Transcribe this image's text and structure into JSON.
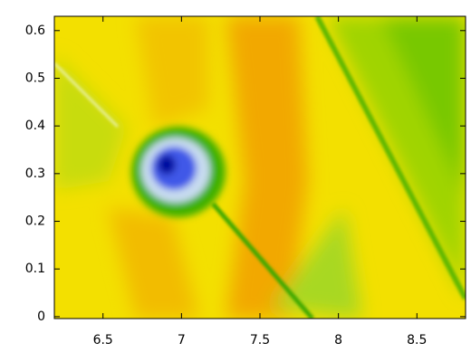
{
  "chart_data": {
    "type": "heatmap",
    "xlim": [
      6.19,
      8.81
    ],
    "xticks": [
      6.5,
      7,
      7.5,
      8,
      8.5
    ],
    "ylim": [
      -0.004,
      0.63
    ],
    "yticks": [
      0,
      0.1,
      0.2,
      0.3,
      0.4,
      0.5,
      0.6
    ]
  }
}
